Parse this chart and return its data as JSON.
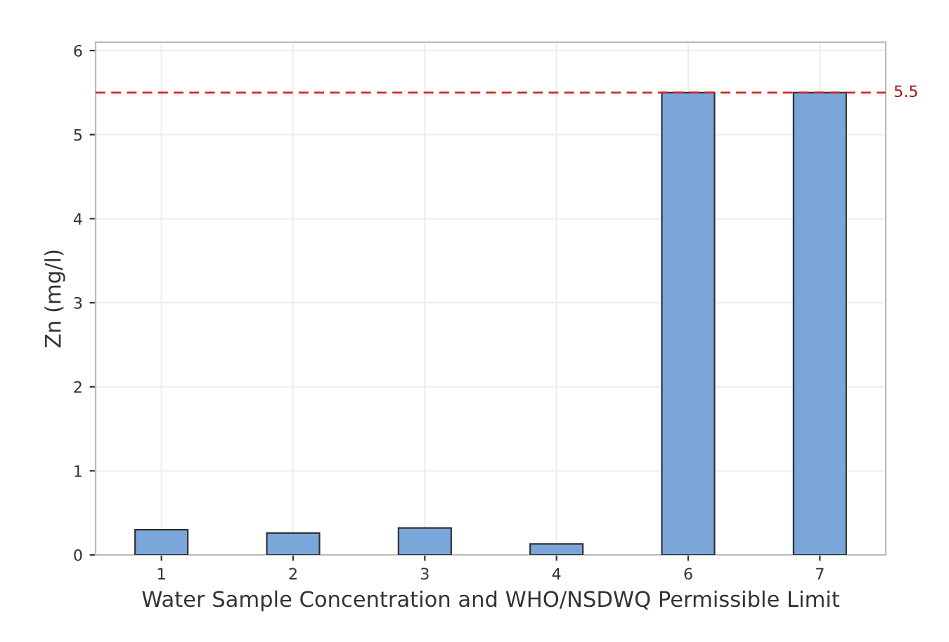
{
  "chart_data": {
    "type": "bar",
    "xlabel": "Water Sample Concentration and WHO/NSDWQ Permissible Limit",
    "ylabel": "Zn (mg/l)",
    "categories": [
      "1",
      "2",
      "3",
      "4",
      "6",
      "7"
    ],
    "values": [
      0.3,
      0.26,
      0.32,
      0.13,
      5.5,
      5.5
    ],
    "color": "#7ba6d9",
    "ylim": [
      0,
      6.1
    ],
    "yticks": [
      0,
      1,
      2,
      3,
      4,
      5,
      6
    ],
    "grid": true,
    "ref_lines": [
      {
        "axis": "y",
        "value": 5.5,
        "label": "5.5",
        "color": "#d62728",
        "line_style": "dashed"
      }
    ]
  }
}
